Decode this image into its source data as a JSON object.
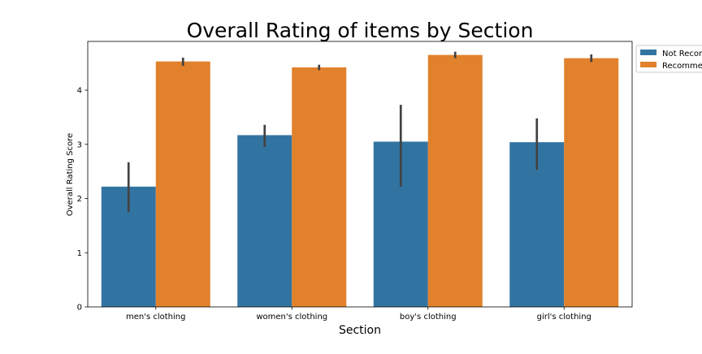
{
  "chart_data": {
    "type": "bar",
    "title": "Overall Rating of items by Section",
    "xlabel": "Section",
    "ylabel": "Overall Rating Score",
    "categories": [
      "men's clothing",
      "women's clothing",
      "boy's clothing",
      "girl's clothing"
    ],
    "ylim": [
      0,
      4.9
    ],
    "yticks": [
      0,
      1,
      2,
      3,
      4
    ],
    "grid": false,
    "legend_placement": "upper-right-outside",
    "legend_labels": [
      "Not Recommended",
      "Recommended"
    ],
    "series": [
      {
        "name": "Not Recommended",
        "color": "#3274a1",
        "values": [
          2.22,
          3.17,
          3.05,
          3.04
        ],
        "error_low": [
          1.75,
          2.95,
          2.22,
          2.53
        ],
        "error_high": [
          2.67,
          3.36,
          3.73,
          3.48
        ]
      },
      {
        "name": "Recommended",
        "color": "#e1812c",
        "values": [
          4.53,
          4.42,
          4.65,
          4.59
        ],
        "error_low": [
          4.45,
          4.37,
          4.59,
          4.52
        ],
        "error_high": [
          4.6,
          4.47,
          4.71,
          4.66
        ]
      }
    ]
  }
}
